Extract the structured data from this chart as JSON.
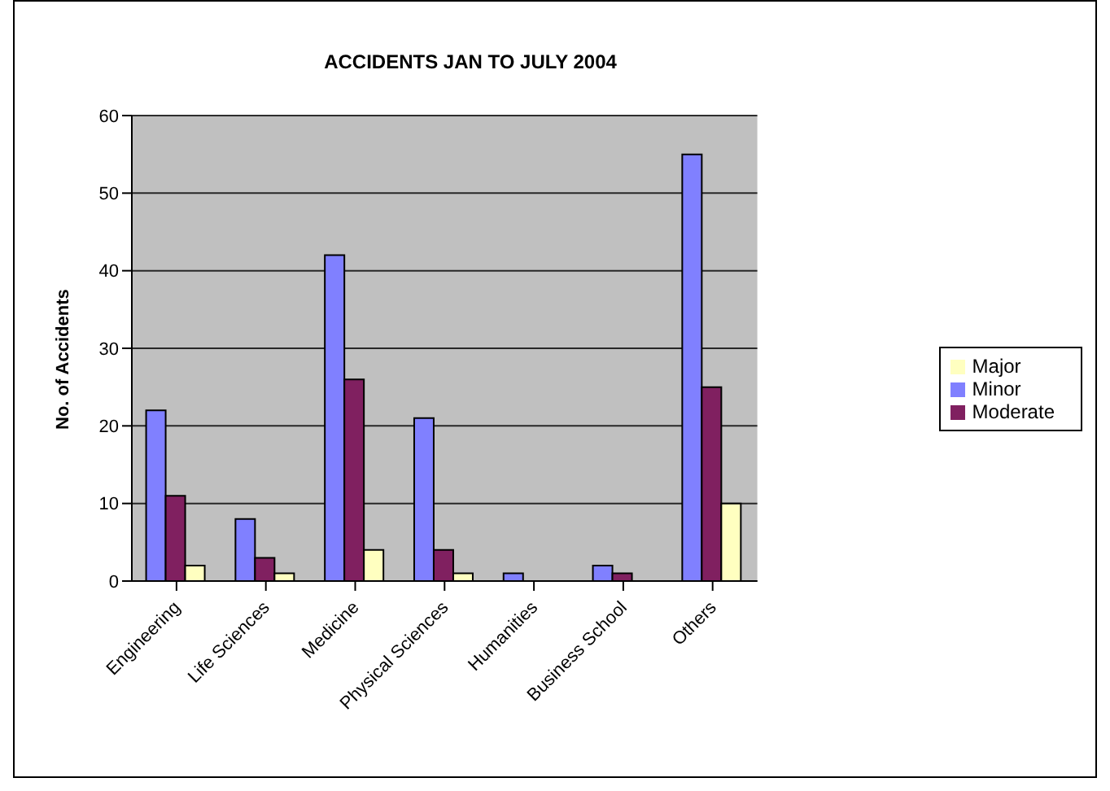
{
  "chart_data": {
    "type": "bar",
    "title": "ACCIDENTS JAN TO JULY 2004",
    "ylabel": "No. of Accidents",
    "categories": [
      "Engineering",
      "Life Sciences",
      "Medicine",
      "Physical Sciences",
      "Humanities",
      "Business School",
      "Others"
    ],
    "series": [
      {
        "name": "Minor",
        "color": "#8080ff",
        "values": [
          22,
          8,
          42,
          21,
          1,
          2,
          55
        ]
      },
      {
        "name": "Moderate",
        "color": "#802060",
        "values": [
          11,
          3,
          26,
          4,
          0,
          1,
          25
        ]
      },
      {
        "name": "Major",
        "color": "#ffffc0",
        "values": [
          2,
          1,
          4,
          1,
          0,
          0,
          10
        ]
      }
    ],
    "ylim": [
      0,
      60
    ],
    "yticks": [
      0,
      10,
      20,
      30,
      40,
      50,
      60
    ],
    "grid": "y",
    "legend": "right"
  }
}
